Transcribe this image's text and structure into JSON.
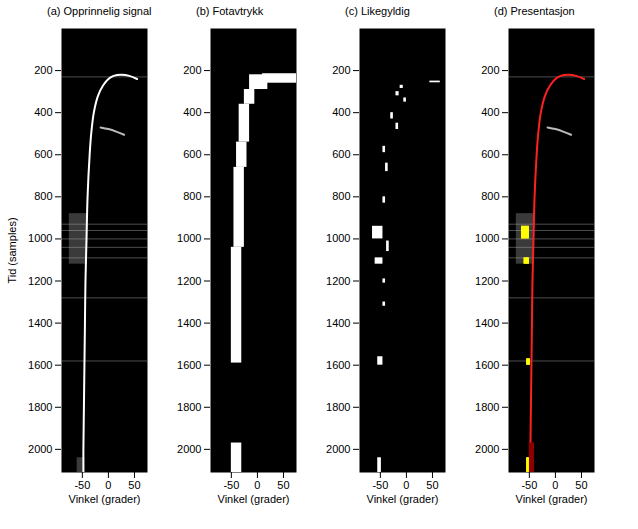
{
  "chart_data": [
    {
      "type": "image",
      "title": "(a) Opprinnelig signal",
      "x_label": "Vinkel (grader)",
      "y_label": "Tid (samples)",
      "xlim": [
        -90,
        75
      ],
      "ylim": [
        0,
        2110
      ],
      "xticks": [
        -50,
        0,
        50
      ],
      "yticks": [
        200,
        400,
        600,
        800,
        1000,
        1200,
        1400,
        1600,
        1800,
        2000
      ],
      "regions": [
        {
          "color": "#3a3a3a",
          "boxes": [
            [
              880,
              1120,
              -75,
              -40
            ],
            [
              2040,
              2110,
              -60,
              -45
            ]
          ]
        }
      ],
      "streaks": [
        230,
        930,
        960,
        1000,
        1040,
        1090,
        1280,
        1580
      ],
      "lines": [
        {
          "color": "#ffffff",
          "points": [
            [
              240,
              55
            ],
            [
              225,
              40
            ],
            [
              220,
              25
            ],
            [
              225,
              10
            ],
            [
              240,
              0
            ],
            [
              270,
              -10
            ],
            [
              320,
              -20
            ],
            [
              400,
              -28
            ],
            [
              500,
              -33
            ],
            [
              600,
              -36
            ],
            [
              800,
              -40
            ],
            [
              1000,
              -42
            ],
            [
              1200,
              -44
            ],
            [
              1400,
              -45
            ],
            [
              1600,
              -46
            ],
            [
              1800,
              -47
            ],
            [
              2000,
              -48
            ],
            [
              2110,
              -48
            ]
          ]
        },
        {
          "color": "#bbbbbb",
          "points": [
            [
              470,
              -15
            ],
            [
              478,
              0
            ],
            [
              490,
              15
            ],
            [
              505,
              30
            ]
          ]
        }
      ]
    },
    {
      "type": "image",
      "title": "(b) Fotavtrykk",
      "x_label": "Vinkel (grader)",
      "xlim": [
        -90,
        75
      ],
      "ylim": [
        0,
        2110
      ],
      "xticks": [
        -50,
        0,
        50
      ],
      "yticks": [
        200,
        400,
        600,
        800,
        1000,
        1200,
        1400,
        1600,
        1800,
        2000
      ],
      "regions": [
        {
          "color": "#ffffff",
          "boxes": [
            [
              215,
              260,
              10,
              75
            ],
            [
              220,
              290,
              -15,
              20
            ],
            [
              290,
              360,
              -25,
              -5
            ],
            [
              360,
              540,
              -35,
              -15
            ],
            [
              540,
              660,
              -40,
              -20
            ],
            [
              660,
              1040,
              -45,
              -25
            ],
            [
              1040,
              1590,
              -50,
              -30
            ],
            [
              1970,
              2110,
              -50,
              -30
            ]
          ]
        }
      ]
    },
    {
      "type": "image",
      "title": "(c) Likegyldig",
      "x_label": "Vinkel (grader)",
      "xlim": [
        -90,
        75
      ],
      "ylim": [
        0,
        2110
      ],
      "xticks": [
        -50,
        0,
        50
      ],
      "yticks": [
        200,
        400,
        600,
        800,
        1000,
        1200,
        1400,
        1600,
        1800,
        2000
      ],
      "regions": [
        {
          "color": "#ffffff",
          "boxes": [
            [
              250,
              258,
              45,
              65
            ],
            [
              270,
              285,
              -12,
              -6
            ],
            [
              300,
              320,
              -20,
              -14
            ],
            [
              330,
              350,
              -5,
              0
            ],
            [
              400,
              430,
              -30,
              -25
            ],
            [
              450,
              480,
              -20,
              -15
            ],
            [
              560,
              590,
              -45,
              -40
            ],
            [
              640,
              680,
              -40,
              -35
            ],
            [
              800,
              830,
              -45,
              -40
            ],
            [
              940,
              1000,
              -65,
              -45
            ],
            [
              1010,
              1060,
              -38,
              -33
            ],
            [
              1090,
              1120,
              -60,
              -45
            ],
            [
              1190,
              1210,
              -45,
              -40
            ],
            [
              1300,
              1320,
              -45,
              -40
            ],
            [
              1560,
              1600,
              -55,
              -45
            ],
            [
              2040,
              2110,
              -55,
              -48
            ]
          ]
        }
      ]
    },
    {
      "type": "image",
      "title": "(d) Presentasjon",
      "x_label": "Vinkel (grader)",
      "xlim": [
        -90,
        75
      ],
      "ylim": [
        0,
        2110
      ],
      "xticks": [
        -50,
        0,
        50
      ],
      "yticks": [
        200,
        400,
        600,
        800,
        1000,
        1200,
        1400,
        1600,
        1800,
        2000
      ],
      "regions": [
        {
          "color": "#3a3a3a",
          "boxes": [
            [
              880,
              1120,
              -75,
              -40
            ]
          ]
        },
        {
          "color": "#8b0000",
          "boxes": [
            [
              1970,
              2110,
              -50,
              -40
            ]
          ]
        },
        {
          "color": "#ffff00",
          "boxes": [
            [
              940,
              1000,
              -65,
              -50
            ],
            [
              1090,
              1120,
              -60,
              -50
            ],
            [
              1570,
              1600,
              -55,
              -48
            ],
            [
              2040,
              2110,
              -55,
              -50
            ]
          ]
        }
      ],
      "streaks": [
        230,
        930,
        960,
        1000,
        1040,
        1090,
        1280,
        1580
      ],
      "lines": [
        {
          "color": "#ff2020",
          "points": [
            [
              240,
              55
            ],
            [
              225,
              40
            ],
            [
              220,
              25
            ],
            [
              225,
              10
            ],
            [
              240,
              0
            ],
            [
              270,
              -10
            ],
            [
              320,
              -20
            ],
            [
              400,
              -28
            ],
            [
              500,
              -33
            ],
            [
              600,
              -36
            ],
            [
              800,
              -40
            ],
            [
              1000,
              -42
            ],
            [
              1200,
              -44
            ],
            [
              1400,
              -45
            ],
            [
              1600,
              -46
            ],
            [
              1800,
              -47
            ],
            [
              2000,
              -48
            ],
            [
              2110,
              -48
            ]
          ]
        },
        {
          "color": "#bbbbbb",
          "points": [
            [
              470,
              -15
            ],
            [
              478,
              0
            ],
            [
              490,
              15
            ],
            [
              505,
              30
            ]
          ]
        }
      ]
    }
  ]
}
